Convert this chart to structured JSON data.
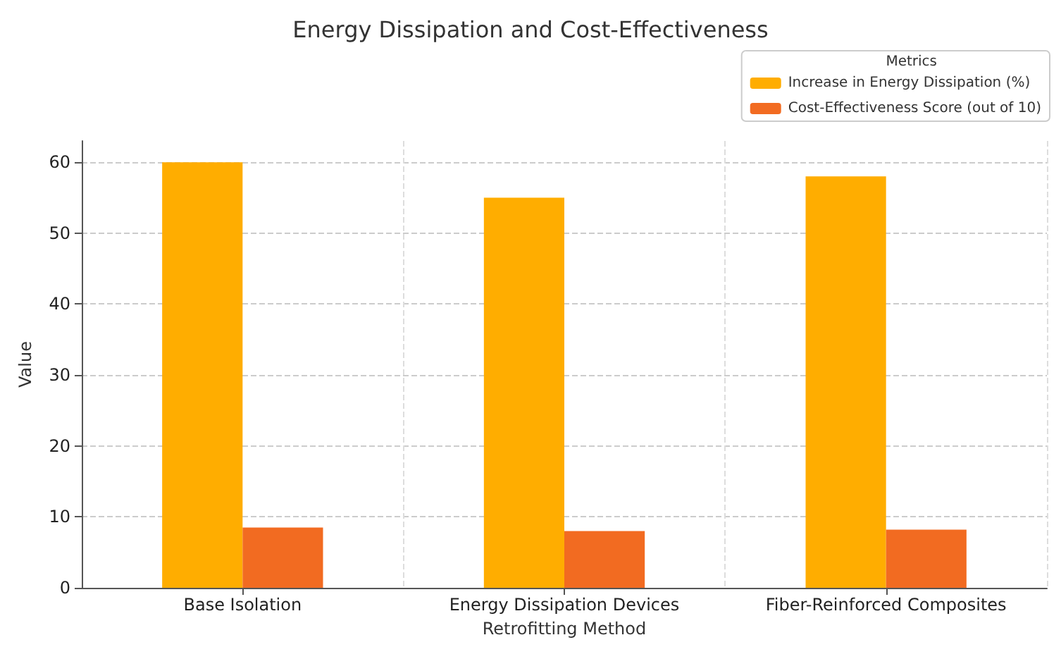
{
  "chart_data": {
    "type": "bar",
    "title": "Energy Dissipation and Cost-Effectiveness",
    "xlabel": "Retrofitting Method",
    "ylabel": "Value",
    "legend_title": "Metrics",
    "categories": [
      "Base Isolation",
      "Energy Dissipation Devices",
      "Fiber-Reinforced Composites"
    ],
    "series": [
      {
        "name": "Increase in Energy Dissipation (%)",
        "color": "#ffad00",
        "values": [
          60,
          55,
          58
        ]
      },
      {
        "name": "Cost-Effectiveness Score (out of 10)",
        "color": "#f26b21",
        "values": [
          8.5,
          8,
          8.2
        ]
      }
    ],
    "ylim": [
      0,
      63
    ],
    "yticks": [
      0,
      10,
      20,
      30,
      40,
      50,
      60
    ],
    "grid": true,
    "legend": "top right"
  }
}
